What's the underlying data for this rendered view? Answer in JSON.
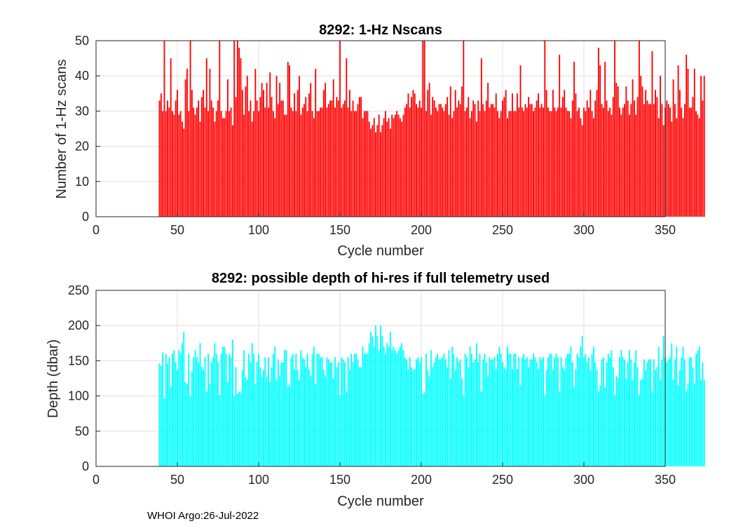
{
  "footer": "WHOI Argo:26-Jul-2022",
  "chart_data": [
    {
      "type": "bar",
      "title": "8292: 1-Hz Nscans",
      "xlabel": "Cycle number",
      "ylabel": "Number of 1-Hz scans",
      "xlim": [
        0,
        350
      ],
      "ylim": [
        0,
        50
      ],
      "xticks": [
        0,
        50,
        100,
        150,
        200,
        250,
        300,
        350
      ],
      "yticks": [
        0,
        10,
        20,
        30,
        40,
        50
      ],
      "grid": true,
      "color": "#ff0000",
      "x_start": 39,
      "values": [
        33,
        35,
        30,
        50,
        30,
        33,
        31,
        45,
        30,
        29,
        33,
        36,
        29,
        30,
        27,
        25,
        39,
        42,
        30,
        50,
        36,
        31,
        29,
        31,
        33,
        27,
        34,
        36,
        31,
        45,
        30,
        42,
        33,
        31,
        27,
        30,
        33,
        50,
        30,
        28,
        28,
        30,
        39,
        30,
        31,
        26,
        50,
        34,
        50,
        48,
        45,
        36,
        29,
        37,
        40,
        30,
        33,
        27,
        30,
        42,
        33,
        30,
        34,
        38,
        36,
        31,
        38,
        31,
        41,
        34,
        30,
        28,
        40,
        32,
        38,
        33,
        33,
        29,
        29,
        44,
        43,
        31,
        30,
        35,
        30,
        36,
        40,
        29,
        31,
        32,
        34,
        30,
        35,
        38,
        30,
        28,
        42,
        30,
        30,
        31,
        31,
        36,
        38,
        31,
        32,
        33,
        33,
        39,
        31,
        34,
        33,
        50,
        31,
        32,
        33,
        45,
        31,
        36,
        30,
        33,
        30,
        30,
        32,
        34,
        34,
        28,
        30,
        30,
        30,
        27,
        25,
        26,
        28,
        24,
        26,
        29,
        24,
        26,
        28,
        30,
        27,
        28,
        25,
        29,
        28,
        29,
        30,
        29,
        28,
        27,
        29,
        31,
        32,
        35,
        31,
        34,
        36,
        35,
        32,
        31,
        33,
        31,
        50,
        50,
        30,
        36,
        38,
        29,
        34,
        33,
        31,
        30,
        32,
        32,
        31,
        30,
        32,
        34,
        29,
        37,
        28,
        30,
        36,
        31,
        33,
        32,
        37,
        50,
        30,
        31,
        34,
        28,
        30,
        33,
        32,
        27,
        33,
        30,
        45,
        32,
        30,
        33,
        38,
        31,
        32,
        32,
        31,
        35,
        30,
        28,
        30,
        33,
        34,
        36,
        28,
        30,
        30,
        35,
        30,
        30,
        35,
        31,
        43,
        31,
        30,
        32,
        31,
        34,
        32,
        32,
        30,
        31,
        33,
        35,
        31,
        32,
        31,
        50,
        36,
        31,
        30,
        30,
        36,
        31,
        30,
        31,
        46,
        31,
        34,
        36,
        31,
        30,
        30,
        28,
        33,
        44,
        35,
        30,
        31,
        28,
        26,
        31,
        30,
        33,
        31,
        36,
        30,
        28,
        33,
        36,
        48,
        43,
        32,
        31,
        44,
        33,
        30,
        31,
        29,
        34,
        50,
        38,
        37,
        31,
        29,
        31,
        32,
        37,
        33,
        29,
        32,
        39,
        33,
        29,
        34,
        50,
        40,
        37,
        32,
        36,
        33,
        32,
        32,
        47,
        32,
        36,
        34,
        28,
        40,
        32,
        26,
        31,
        33,
        32,
        31,
        27,
        39,
        32,
        28,
        43,
        36,
        31,
        28,
        32,
        46,
        42,
        31,
        31,
        34,
        42,
        30,
        29,
        28,
        40,
        33,
        40
      ]
    },
    {
      "type": "bar",
      "title": "8292: possible depth of hi-res if full telemetry used",
      "xlabel": "Cycle number",
      "ylabel": "Depth (dbar)",
      "xlim": [
        0,
        350
      ],
      "ylim": [
        0,
        250
      ],
      "xticks": [
        0,
        50,
        100,
        150,
        200,
        250,
        300,
        350
      ],
      "yticks": [
        0,
        50,
        100,
        150,
        200,
        250
      ],
      "grid": true,
      "color": "#00ffff",
      "x_start": 39,
      "values": [
        146,
        143,
        162,
        97,
        160,
        146,
        155,
        113,
        160,
        165,
        148,
        137,
        165,
        160,
        175,
        191,
        120,
        117,
        160,
        100,
        135,
        155,
        165,
        155,
        148,
        175,
        142,
        137,
        155,
        106,
        160,
        117,
        148,
        155,
        175,
        160,
        148,
        101,
        160,
        170,
        170,
        160,
        120,
        160,
        155,
        180,
        100,
        141,
        103,
        106,
        105,
        137,
        165,
        127,
        123,
        160,
        148,
        175,
        160,
        117,
        148,
        160,
        141,
        128,
        137,
        155,
        128,
        155,
        120,
        141,
        160,
        170,
        123,
        152,
        128,
        148,
        148,
        165,
        165,
        113,
        115,
        155,
        160,
        138,
        160,
        137,
        123,
        165,
        155,
        152,
        141,
        160,
        138,
        128,
        160,
        170,
        117,
        160,
        160,
        155,
        155,
        137,
        128,
        155,
        152,
        148,
        148,
        125,
        155,
        141,
        148,
        101,
        155,
        152,
        148,
        106,
        155,
        137,
        160,
        148,
        160,
        160,
        152,
        141,
        141,
        170,
        160,
        160,
        160,
        175,
        191,
        185,
        170,
        200,
        185,
        165,
        200,
        185,
        170,
        160,
        175,
        170,
        191,
        165,
        170,
        165,
        160,
        165,
        170,
        175,
        165,
        155,
        152,
        138,
        155,
        141,
        137,
        138,
        152,
        155,
        148,
        155,
        103,
        105,
        160,
        137,
        128,
        165,
        141,
        148,
        155,
        160,
        152,
        152,
        155,
        160,
        152,
        141,
        165,
        125,
        170,
        160,
        137,
        155,
        148,
        152,
        125,
        101,
        160,
        155,
        141,
        170,
        160,
        148,
        152,
        175,
        148,
        160,
        106,
        152,
        160,
        148,
        128,
        155,
        152,
        152,
        155,
        138,
        160,
        170,
        160,
        148,
        141,
        137,
        170,
        160,
        160,
        138,
        160,
        160,
        138,
        155,
        115,
        155,
        160,
        152,
        155,
        141,
        152,
        152,
        160,
        155,
        148,
        138,
        155,
        152,
        155,
        101,
        137,
        155,
        160,
        160,
        137,
        155,
        160,
        155,
        106,
        155,
        141,
        137,
        155,
        160,
        160,
        170,
        148,
        113,
        138,
        160,
        155,
        170,
        185,
        155,
        160,
        148,
        155,
        137,
        160,
        170,
        148,
        137,
        106,
        115,
        152,
        155,
        113,
        148,
        160,
        155,
        165,
        141,
        101,
        128,
        125,
        155,
        165,
        155,
        152,
        125,
        148,
        165,
        152,
        123,
        148,
        165,
        141,
        101,
        123,
        125,
        152,
        137,
        148,
        152,
        152,
        106,
        152,
        137,
        141,
        170,
        123,
        152,
        185,
        155,
        148,
        152,
        155,
        175,
        123,
        152,
        170,
        115,
        137,
        155,
        170,
        152,
        106,
        117,
        155,
        155,
        141,
        117,
        160,
        165,
        170,
        123,
        148,
        123
      ]
    }
  ]
}
